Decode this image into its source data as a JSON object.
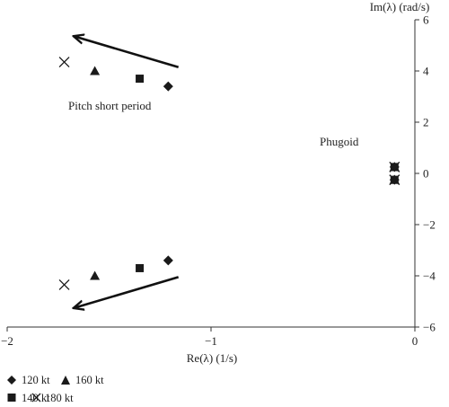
{
  "chart_data": {
    "type": "scatter",
    "xlabel": "Re(λ) (1/s)",
    "ylabel": "Im(λ) (rad/s)",
    "xlim": [
      -2,
      0
    ],
    "ylim": [
      -6,
      6
    ],
    "x_ticks": [
      -2,
      -1,
      0
    ],
    "x_tick_labels": [
      "−2",
      "−1",
      "0"
    ],
    "y_ticks": [
      6,
      4,
      2,
      0,
      -2,
      -4,
      -6
    ],
    "y_tick_labels": [
      "6",
      "4",
      "2",
      "0",
      "−2",
      "−4",
      "−6"
    ],
    "grid": false,
    "legend_position": "bottom-left",
    "annotations": [
      {
        "text": "Pitch short period"
      },
      {
        "text": "Phugoid"
      }
    ],
    "series": [
      {
        "name": "120 kt",
        "marker": "diamond",
        "color": "#1a1a1a",
        "points": [
          {
            "x": -1.21,
            "y": 3.4
          },
          {
            "x": -1.21,
            "y": -3.4
          },
          {
            "x": -0.1,
            "y": 0.25
          },
          {
            "x": -0.1,
            "y": -0.25
          }
        ]
      },
      {
        "name": "140 kt",
        "marker": "square",
        "color": "#1a1a1a",
        "points": [
          {
            "x": -1.35,
            "y": 3.7
          },
          {
            "x": -1.35,
            "y": -3.7
          },
          {
            "x": -0.1,
            "y": 0.25
          },
          {
            "x": -0.1,
            "y": -0.25
          }
        ]
      },
      {
        "name": "160 kt",
        "marker": "triangle",
        "color": "#1a1a1a",
        "points": [
          {
            "x": -1.57,
            "y": 4.0
          },
          {
            "x": -1.57,
            "y": -4.0
          },
          {
            "x": -0.1,
            "y": 0.25
          },
          {
            "x": -0.1,
            "y": -0.25
          }
        ]
      },
      {
        "name": "180 kt",
        "marker": "x",
        "color": "#1a1a1a",
        "points": [
          {
            "x": -1.72,
            "y": 4.35
          },
          {
            "x": -1.72,
            "y": -4.35
          },
          {
            "x": -0.1,
            "y": 0.25
          },
          {
            "x": -0.1,
            "y": -0.25
          }
        ]
      }
    ],
    "arrows": [
      {
        "x1": -1.16,
        "y1": 4.15,
        "x2": -1.67,
        "y2": 5.35
      },
      {
        "x1": -1.16,
        "y1": -4.05,
        "x2": -1.67,
        "y2": -5.25
      }
    ]
  }
}
